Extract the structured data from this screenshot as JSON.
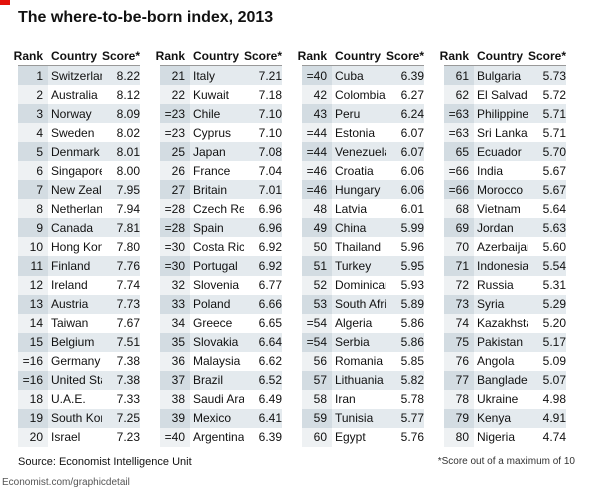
{
  "header": {
    "title": "The where-to-be-born index, 2013"
  },
  "table": {
    "columns": [
      "Rank",
      "Country",
      "Score*"
    ],
    "groups": [
      [
        [
          "1",
          "Switzerland",
          "8.22"
        ],
        [
          "2",
          "Australia",
          "8.12"
        ],
        [
          "3",
          "Norway",
          "8.09"
        ],
        [
          "4",
          "Sweden",
          "8.02"
        ],
        [
          "5",
          "Denmark",
          "8.01"
        ],
        [
          "6",
          "Singapore",
          "8.00"
        ],
        [
          "7",
          "New Zealand",
          "7.95"
        ],
        [
          "8",
          "Netherlands",
          "7.94"
        ],
        [
          "9",
          "Canada",
          "7.81"
        ],
        [
          "10",
          "Hong Kong",
          "7.80"
        ],
        [
          "11",
          "Finland",
          "7.76"
        ],
        [
          "12",
          "Ireland",
          "7.74"
        ],
        [
          "13",
          "Austria",
          "7.73"
        ],
        [
          "14",
          "Taiwan",
          "7.67"
        ],
        [
          "15",
          "Belgium",
          "7.51"
        ],
        [
          "=16",
          "Germany",
          "7.38"
        ],
        [
          "=16",
          "United States",
          "7.38"
        ],
        [
          "18",
          "U.A.E.",
          "7.33"
        ],
        [
          "19",
          "South Korea",
          "7.25"
        ],
        [
          "20",
          "Israel",
          "7.23"
        ]
      ],
      [
        [
          "21",
          "Italy",
          "7.21"
        ],
        [
          "22",
          "Kuwait",
          "7.18"
        ],
        [
          "=23",
          "Chile",
          "7.10"
        ],
        [
          "=23",
          "Cyprus",
          "7.10"
        ],
        [
          "25",
          "Japan",
          "7.08"
        ],
        [
          "26",
          "France",
          "7.04"
        ],
        [
          "27",
          "Britain",
          "7.01"
        ],
        [
          "=28",
          "Czech Rep.",
          "6.96"
        ],
        [
          "=28",
          "Spain",
          "6.96"
        ],
        [
          "=30",
          "Costa Rica",
          "6.92"
        ],
        [
          "=30",
          "Portugal",
          "6.92"
        ],
        [
          "32",
          "Slovenia",
          "6.77"
        ],
        [
          "33",
          "Poland",
          "6.66"
        ],
        [
          "34",
          "Greece",
          "6.65"
        ],
        [
          "35",
          "Slovakia",
          "6.64"
        ],
        [
          "36",
          "Malaysia",
          "6.62"
        ],
        [
          "37",
          "Brazil",
          "6.52"
        ],
        [
          "38",
          "Saudi Arabia",
          "6.49"
        ],
        [
          "39",
          "Mexico",
          "6.41"
        ],
        [
          "=40",
          "Argentina",
          "6.39"
        ]
      ],
      [
        [
          "=40",
          "Cuba",
          "6.39"
        ],
        [
          "42",
          "Colombia",
          "6.27"
        ],
        [
          "43",
          "Peru",
          "6.24"
        ],
        [
          "=44",
          "Estonia",
          "6.07"
        ],
        [
          "=44",
          "Venezuela",
          "6.07"
        ],
        [
          "=46",
          "Croatia",
          "6.06"
        ],
        [
          "=46",
          "Hungary",
          "6.06"
        ],
        [
          "48",
          "Latvia",
          "6.01"
        ],
        [
          "49",
          "China",
          "5.99"
        ],
        [
          "50",
          "Thailand",
          "5.96"
        ],
        [
          "51",
          "Turkey",
          "5.95"
        ],
        [
          "52",
          "Dominican Rep.",
          "5.93"
        ],
        [
          "53",
          "South Africa",
          "5.89"
        ],
        [
          "=54",
          "Algeria",
          "5.86"
        ],
        [
          "=54",
          "Serbia",
          "5.86"
        ],
        [
          "56",
          "Romania",
          "5.85"
        ],
        [
          "57",
          "Lithuania",
          "5.82"
        ],
        [
          "58",
          "Iran",
          "5.78"
        ],
        [
          "59",
          "Tunisia",
          "5.77"
        ],
        [
          "60",
          "Egypt",
          "5.76"
        ]
      ],
      [
        [
          "61",
          "Bulgaria",
          "5.73"
        ],
        [
          "62",
          "El Salvador",
          "5.72"
        ],
        [
          "=63",
          "Philippines",
          "5.71"
        ],
        [
          "=63",
          "Sri Lanka",
          "5.71"
        ],
        [
          "65",
          "Ecuador",
          "5.70"
        ],
        [
          "=66",
          "India",
          "5.67"
        ],
        [
          "=66",
          "Morocco",
          "5.67"
        ],
        [
          "68",
          "Vietnam",
          "5.64"
        ],
        [
          "69",
          "Jordan",
          "5.63"
        ],
        [
          "70",
          "Azerbaijan",
          "5.60"
        ],
        [
          "71",
          "Indonesia",
          "5.54"
        ],
        [
          "72",
          "Russia",
          "5.31"
        ],
        [
          "73",
          "Syria",
          "5.29"
        ],
        [
          "74",
          "Kazakhstan",
          "5.20"
        ],
        [
          "75",
          "Pakistan",
          "5.17"
        ],
        [
          "76",
          "Angola",
          "5.09"
        ],
        [
          "77",
          "Bangladesh",
          "5.07"
        ],
        [
          "78",
          "Ukraine",
          "4.98"
        ],
        [
          "79",
          "Kenya",
          "4.91"
        ],
        [
          "80",
          "Nigeria",
          "4.74"
        ]
      ]
    ]
  },
  "footer": {
    "source": "Source: Economist Intelligence Unit",
    "url": "Economist.com/graphicdetail",
    "footnote": "*Score out of a maximum of 10"
  }
}
